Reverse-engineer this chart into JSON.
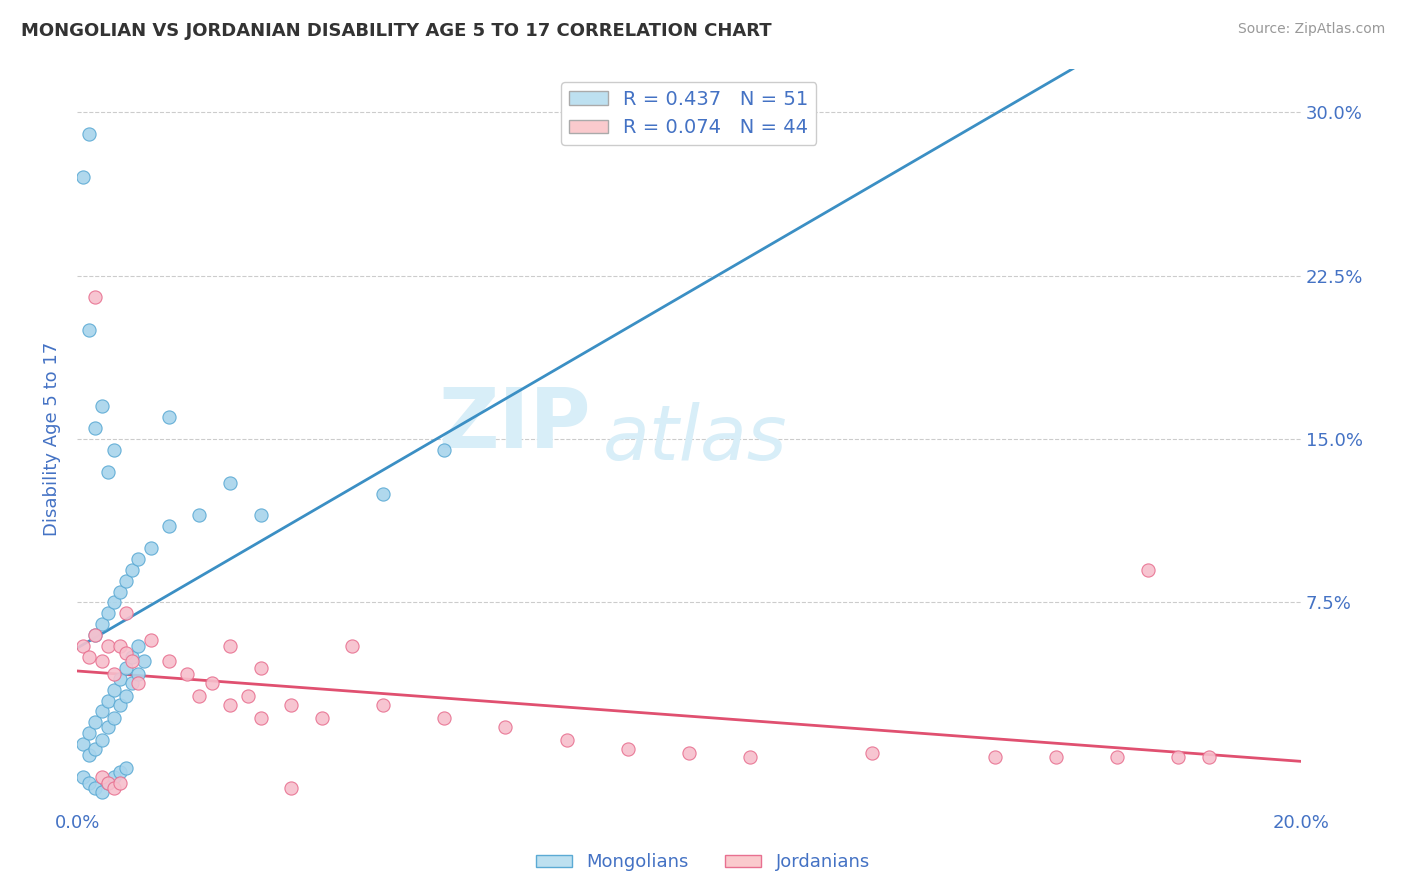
{
  "title": "MONGOLIAN VS JORDANIAN DISABILITY AGE 5 TO 17 CORRELATION CHART",
  "source": "Source: ZipAtlas.com",
  "ylabel": "Disability Age 5 to 17",
  "xlim": [
    0.0,
    0.2
  ],
  "ylim": [
    -0.02,
    0.32
  ],
  "xtick_labels": [
    "0.0%",
    "20.0%"
  ],
  "xtick_positions": [
    0.0,
    0.2
  ],
  "ytick_labels": [
    "7.5%",
    "15.0%",
    "22.5%",
    "30.0%"
  ],
  "ytick_positions": [
    0.075,
    0.15,
    0.225,
    0.3
  ],
  "mongolian_R": 0.437,
  "mongolian_N": 51,
  "jordanian_R": 0.074,
  "jordanian_N": 44,
  "mongolian_color": "#A8D4EC",
  "mongolian_edge_color": "#5BAAD4",
  "mongolian_line_color": "#3B8FC4",
  "jordanian_color": "#F7BFCC",
  "jordanian_edge_color": "#E87090",
  "jordanian_line_color": "#E05070",
  "legend_mongolian_color": "#BDE0F0",
  "legend_jordanian_color": "#FACACD",
  "background_color": "#FFFFFF",
  "grid_color": "#CCCCCC",
  "title_color": "#333333",
  "tick_color": "#4472C4",
  "watermark_color": "#D8EEF8",
  "mongolian_x": [
    0.001,
    0.002,
    0.003,
    0.004,
    0.005,
    0.006,
    0.007,
    0.008,
    0.009,
    0.01,
    0.002,
    0.003,
    0.004,
    0.005,
    0.006,
    0.007,
    0.008,
    0.009,
    0.01,
    0.011,
    0.003,
    0.004,
    0.005,
    0.006,
    0.007,
    0.008,
    0.009,
    0.01,
    0.012,
    0.015,
    0.001,
    0.002,
    0.003,
    0.004,
    0.005,
    0.006,
    0.007,
    0.008,
    0.02,
    0.025,
    0.001,
    0.002,
    0.003,
    0.004,
    0.005,
    0.006,
    0.05,
    0.06,
    0.03,
    0.015,
    0.002
  ],
  "mongolian_y": [
    0.01,
    0.015,
    0.02,
    0.025,
    0.03,
    0.035,
    0.04,
    0.045,
    0.05,
    0.055,
    0.005,
    0.008,
    0.012,
    0.018,
    0.022,
    0.028,
    0.032,
    0.038,
    0.042,
    0.048,
    0.06,
    0.065,
    0.07,
    0.075,
    0.08,
    0.085,
    0.09,
    0.095,
    0.1,
    0.11,
    -0.005,
    -0.008,
    -0.01,
    -0.012,
    -0.008,
    -0.005,
    -0.003,
    -0.001,
    0.115,
    0.13,
    0.27,
    0.2,
    0.155,
    0.165,
    0.135,
    0.145,
    0.125,
    0.145,
    0.115,
    0.16,
    0.29
  ],
  "jordanian_x": [
    0.001,
    0.002,
    0.003,
    0.004,
    0.005,
    0.006,
    0.007,
    0.008,
    0.009,
    0.01,
    0.012,
    0.015,
    0.018,
    0.02,
    0.022,
    0.025,
    0.028,
    0.03,
    0.035,
    0.04,
    0.045,
    0.05,
    0.06,
    0.07,
    0.08,
    0.09,
    0.1,
    0.11,
    0.13,
    0.15,
    0.16,
    0.17,
    0.18,
    0.003,
    0.004,
    0.005,
    0.006,
    0.007,
    0.008,
    0.025,
    0.03,
    0.035,
    0.175,
    0.185
  ],
  "jordanian_y": [
    0.055,
    0.05,
    0.06,
    0.048,
    0.055,
    0.042,
    0.055,
    0.052,
    0.048,
    0.038,
    0.058,
    0.048,
    0.042,
    0.032,
    0.038,
    0.028,
    0.032,
    0.022,
    0.028,
    0.022,
    0.055,
    0.028,
    0.022,
    0.018,
    0.012,
    0.008,
    0.006,
    0.004,
    0.006,
    0.004,
    0.004,
    0.004,
    0.004,
    0.215,
    -0.005,
    -0.008,
    -0.01,
    -0.008,
    0.07,
    0.055,
    0.045,
    -0.01,
    0.09,
    0.004
  ]
}
